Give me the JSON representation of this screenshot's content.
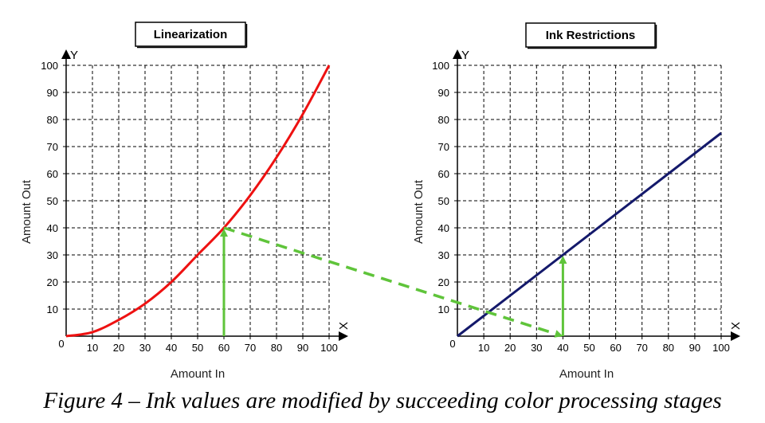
{
  "caption": "Figure 4 – Ink values are modified by succeeding color processing stages",
  "colors": {
    "linearization_curve": "#ee1111",
    "ink_restrictions_line": "#14196b",
    "guide_arrows": "#5fc43a",
    "grid": "#000000"
  },
  "chart_data": [
    {
      "type": "line",
      "title": "Linearization",
      "xlabel": "Amount In",
      "ylabel": "Amount Out",
      "x_axis_letter": "X",
      "y_axis_letter": "Y",
      "xlim": [
        0,
        100
      ],
      "ylim": [
        0,
        100
      ],
      "x_ticks": [
        "0",
        "10",
        "20",
        "30",
        "40",
        "50",
        "60",
        "70",
        "80",
        "90",
        "100"
      ],
      "y_ticks": [
        "10",
        "20",
        "30",
        "40",
        "50",
        "60",
        "70",
        "80",
        "90",
        "100"
      ],
      "grid": true,
      "series": [
        {
          "x": [
            0,
            10,
            20,
            30,
            40,
            50,
            60,
            70,
            80,
            90,
            100
          ],
          "y": [
            0,
            1.5,
            6,
            12,
            20,
            30,
            40,
            52,
            66,
            82,
            100
          ]
        }
      ],
      "annotation": {
        "type": "vertical-arrow",
        "x": 60,
        "y_from": 0,
        "y_to": 40
      }
    },
    {
      "type": "line",
      "title": "Ink Restrictions",
      "xlabel": "Amount In",
      "ylabel": "Amount Out",
      "x_axis_letter": "X",
      "y_axis_letter": "Y",
      "xlim": [
        0,
        100
      ],
      "ylim": [
        0,
        100
      ],
      "x_ticks": [
        "0",
        "10",
        "20",
        "30",
        "40",
        "50",
        "60",
        "70",
        "80",
        "90",
        "100"
      ],
      "y_ticks": [
        "10",
        "20",
        "30",
        "40",
        "50",
        "60",
        "70",
        "80",
        "90",
        "100"
      ],
      "grid": true,
      "series": [
        {
          "x": [
            0,
            100
          ],
          "y": [
            0,
            75
          ]
        }
      ],
      "annotation": {
        "type": "vertical-arrow",
        "x": 40,
        "y_from": 0,
        "y_to": 30
      }
    }
  ],
  "connector": {
    "style": "dashed-arrow",
    "from": {
      "chart": 0,
      "x": 60,
      "y": 40
    },
    "to": {
      "chart": 1,
      "x": 40,
      "y": 0
    }
  }
}
